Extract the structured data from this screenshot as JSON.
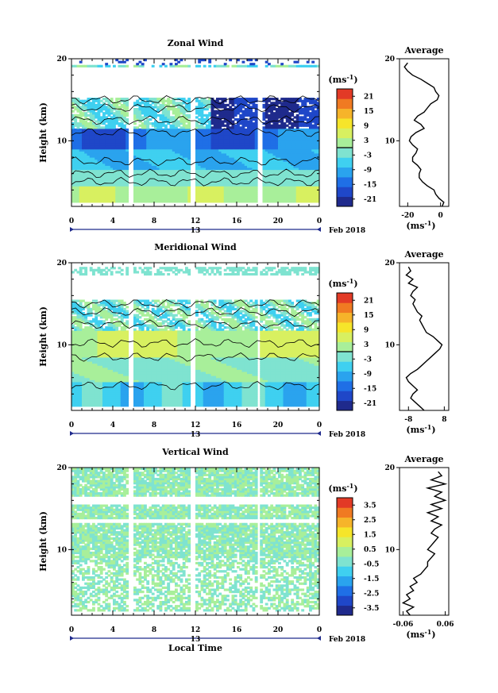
{
  "colors": {
    "scale": [
      "#1f2a8c",
      "#1f47c8",
      "#1f6fe6",
      "#2aa3ee",
      "#3fd0f0",
      "#7fe3d0",
      "#a8ef9a",
      "#d8f060",
      "#f6e52a",
      "#f6b42a",
      "#f07a22",
      "#e23a26"
    ],
    "line": "#000000",
    "time_axis_accent": "#1f2a8c"
  },
  "chart_data": [
    {
      "type": "heatmap",
      "title": "Zonal Wind",
      "ylabel": "Height (km)",
      "ylim": [
        2,
        20
      ],
      "yticks": [
        "20",
        "10"
      ],
      "xlim": [
        0,
        24
      ],
      "xticks": [
        "0",
        "4",
        "8",
        "12",
        "16",
        "20",
        "0"
      ],
      "date_day": "13",
      "date_month": "Feb 2018",
      "gaps_hours": [
        [
          5.6,
          5.9
        ],
        [
          11.6,
          11.9
        ],
        [
          18.1,
          18.4
        ]
      ],
      "colorbar": {
        "unit": "(ms",
        "unit_sup": "-1",
        "unit_close": ")",
        "range": [
          -24,
          24
        ],
        "ticks": [
          "21",
          "15",
          "9",
          "3",
          "-3",
          "-9",
          "-15",
          "-21"
        ],
        "highlight": 0
      },
      "average": {
        "title": "Average",
        "xlim": [
          -25,
          5
        ],
        "xticks": [
          "-20",
          "0"
        ],
        "xunit": "(ms",
        "xunit_sup": "-1",
        "xunit_close": ")",
        "yticks": [
          "20",
          "10"
        ],
        "height_km": [
          2,
          2.5,
          3,
          3.5,
          4,
          4.5,
          5,
          5.5,
          6,
          6.5,
          7,
          7.5,
          8,
          8.5,
          9,
          9.5,
          10,
          10.5,
          11,
          11.5,
          12,
          12.5,
          13,
          13.5,
          14,
          14.5,
          15,
          15.5,
          16,
          16.5,
          17,
          17.5,
          18,
          18.5,
          19,
          19.5
        ],
        "values": [
          1,
          2,
          -1,
          -3,
          -4,
          -8,
          -11,
          -13,
          -13,
          -12,
          -14,
          -17,
          -17,
          -15,
          -14,
          -17,
          -19,
          -18,
          -15,
          -10,
          -12,
          -16,
          -14,
          -10,
          -8,
          -6,
          -2,
          -1,
          -3,
          -4,
          -8,
          -12,
          -17,
          -20,
          -22,
          -20
        ]
      }
    },
    {
      "type": "heatmap",
      "title": "Meridional Wind",
      "ylabel": "Height (km)",
      "ylim": [
        2,
        20
      ],
      "yticks": [
        "20",
        "10"
      ],
      "xlim": [
        0,
        24
      ],
      "xticks": [
        "0",
        "4",
        "8",
        "12",
        "16",
        "20",
        "0"
      ],
      "date_day": "13",
      "date_month": "Feb 2018",
      "gaps_hours": [
        [
          5.6,
          5.9
        ],
        [
          11.6,
          11.9
        ],
        [
          17.9,
          18.2
        ]
      ],
      "colorbar": {
        "unit": "(ms",
        "unit_sup": "-1",
        "unit_close": ")",
        "range": [
          -24,
          24
        ],
        "ticks": [
          "21",
          "15",
          "9",
          "3",
          "-3",
          "-9",
          "-15",
          "-21"
        ],
        "highlight": 0
      },
      "average": {
        "title": "Average",
        "xlim": [
          -12,
          10
        ],
        "xticks": [
          "-8",
          "8"
        ],
        "xunit": "(ms",
        "xunit_sup": "-1",
        "xunit_close": ")",
        "yticks": [
          "20",
          "10"
        ],
        "height_km": [
          2,
          2.5,
          3,
          3.5,
          4,
          4.5,
          5,
          5.5,
          6,
          6.5,
          7,
          7.5,
          8,
          8.5,
          9,
          9.5,
          10,
          10.5,
          11,
          11.5,
          12,
          12.5,
          13,
          13.5,
          14,
          14.5,
          15,
          15.5,
          16,
          16.5,
          17,
          17.5,
          18,
          18.5,
          19,
          19.5
        ],
        "values": [
          -1,
          -3,
          -5,
          -7,
          -6,
          -4,
          -6,
          -8,
          -9,
          -7,
          -4,
          -2,
          0,
          2,
          4,
          6,
          7,
          5,
          3,
          0,
          -1,
          -2,
          -3,
          -2,
          -4,
          -5,
          -6,
          -5,
          -7,
          -6,
          -4,
          -8,
          -6,
          -9,
          -7,
          -8
        ]
      }
    },
    {
      "type": "heatmap",
      "title": "Vertical Wind",
      "ylabel": "Height (km)",
      "xlabel": "Local Time",
      "ylim": [
        2,
        20
      ],
      "yticks": [
        "20",
        "10"
      ],
      "xlim": [
        0,
        24
      ],
      "xticks": [
        "0",
        "4",
        "8",
        "12",
        "16",
        "20",
        "0"
      ],
      "date_day": "13",
      "date_month": "Feb 2018",
      "gaps_hours": [
        [
          5.6,
          5.9
        ],
        [
          11.6,
          11.9
        ],
        [
          18.0,
          18.3
        ]
      ],
      "colorbar": {
        "unit": "(ms",
        "unit_sup": "-1",
        "unit_close": ")",
        "range": [
          -4,
          4
        ],
        "ticks": [
          "3.5",
          "2.5",
          "1.5",
          "0.5",
          "-0.5",
          "-1.5",
          "-2.5",
          "-3.5"
        ],
        "highlight": null
      },
      "average": {
        "title": "Average",
        "xlim": [
          -0.07,
          0.07
        ],
        "xticks": [
          "-0.06",
          "0.06"
        ],
        "xunit": "(ms",
        "xunit_sup": "-1",
        "xunit_close": ")",
        "yticks": [
          "20",
          "10"
        ],
        "height_km": [
          2,
          2.5,
          3,
          3.5,
          4,
          4.5,
          5,
          5.5,
          6,
          6.5,
          7,
          7.5,
          8,
          8.5,
          9,
          9.5,
          10,
          10.5,
          11,
          11.5,
          12,
          12.5,
          13,
          13.5,
          14,
          14.5,
          15,
          15.5,
          16,
          16.5,
          17,
          17.5,
          18,
          18.5,
          19,
          19.5
        ],
        "values": [
          -0.04,
          -0.05,
          -0.03,
          -0.06,
          -0.04,
          -0.05,
          -0.03,
          -0.04,
          -0.02,
          -0.03,
          -0.01,
          0,
          0.01,
          0.01,
          0.02,
          0.03,
          0.01,
          0.02,
          0.03,
          0.04,
          0.02,
          0.03,
          0.05,
          0.02,
          0.04,
          0.01,
          0.05,
          0.02,
          0.06,
          0.03,
          0.05,
          0.01,
          0.06,
          0.02,
          0.05,
          0.04
        ]
      }
    }
  ]
}
